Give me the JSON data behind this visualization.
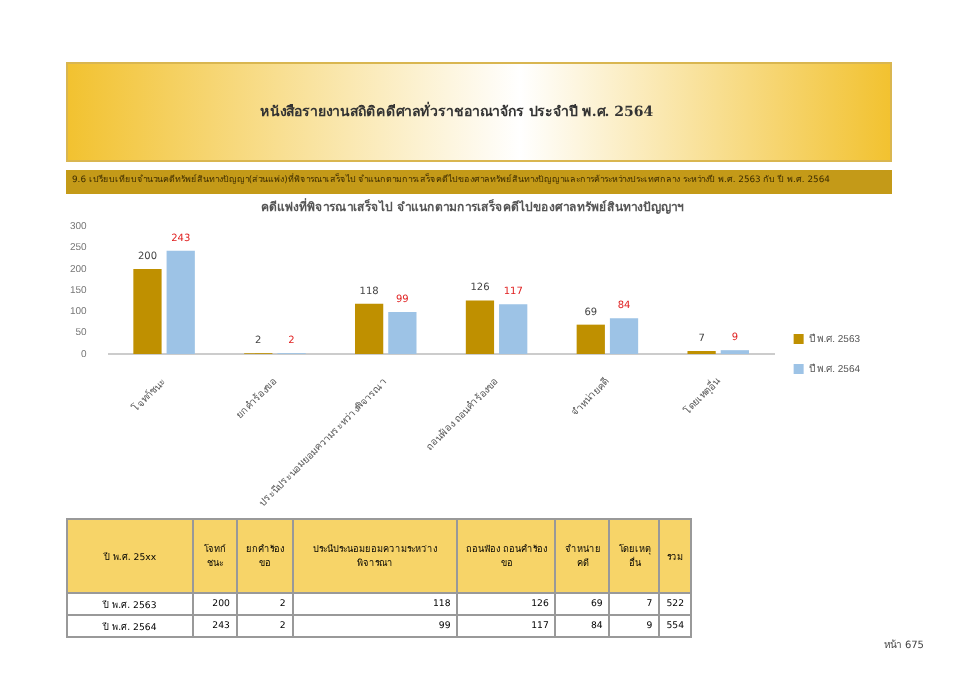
{
  "chart_data": {
    "type": "bar",
    "title": "คดีแพ่งที่พิจารณาเสร็จไป จำแนกตามการเสร็จคดีไปของศาลทรัพย์สินทางปัญญาฯ",
    "subtitle": "9.6 เปรียบเทียบจำนวนคดีทรัพย์สินทางปัญญา(ส่วนแพ่ง)ที่พิจารณาเสร็จไป จำแนกตามการเสร็จคดีไปของศาลทรัพย์สินทางปัญญาและการค้าระหว่างประเทศกลาง ระหว่างปี พ.ศ. 2563 กับ ปี พ.ศ. 2564",
    "categories": [
      "โจทก์ชนะ",
      "ยกคำร้องขอ",
      "ประนีประนอมยอมความระหว่างพิจารณา",
      "ถอนฟ้อง ถอนคำร้องขอ",
      "จำหน่ายคดี",
      "โดยเหตุอื่น"
    ],
    "series": [
      {
        "name": "ปี พ.ศ. 2563",
        "color": "#bf9000",
        "values": [
          200,
          2,
          118,
          126,
          69,
          7
        ]
      },
      {
        "name": "ปี พ.ศ. 2564",
        "color": "#9dc3e6",
        "values": [
          243,
          2,
          99,
          117,
          84,
          9
        ]
      }
    ],
    "ylim": [
      0,
      300
    ],
    "yticks": [
      0,
      50,
      100,
      150,
      200,
      250,
      300
    ],
    "grid": false,
    "legend": "right",
    "data_labels": true,
    "annotations": [
      "หนังสือรายงานสถิติคดีศาลทั่วราชอาณาจักร ประจำปี พ.ศ. 2564",
      "ปี พ.ศ. 25xx",
      "รวม",
      "หน้า 675",
      "200",
      "2",
      "118",
      "126",
      "69",
      "7",
      "522",
      "243",
      "2",
      "99",
      "117",
      "84",
      "9",
      "554"
    ]
  }
}
